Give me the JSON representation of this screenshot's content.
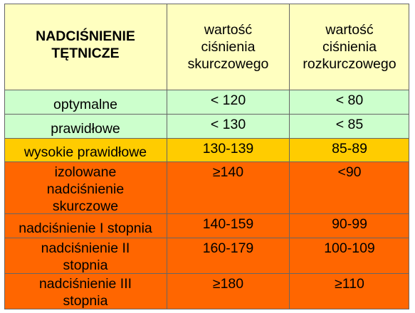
{
  "header": {
    "col1": "NADCIŚNIENIE\nTĘTNICZE",
    "col2": "wartość\nciśnienia\nskurczowego",
    "col3": "wartość\nciśnienia\nrozkurczowego"
  },
  "colors": {
    "header": "#ffffc0",
    "optimal": "#ccffcc",
    "high_normal": "#ffcc00",
    "hypertension": "#ff6600",
    "border": "#666666"
  },
  "rows": [
    {
      "category": "optymalne",
      "systolic": "< 120",
      "diastolic": "< 80"
    },
    {
      "category": "prawidłowe",
      "systolic": "< 130",
      "diastolic": "< 85"
    },
    {
      "category": "wysokie prawidłowe",
      "systolic": "130-139",
      "diastolic": "85-89"
    },
    {
      "category": "izolowane\nnadciśnienie\nskurczowe",
      "systolic": "≥140",
      "diastolic": "<90"
    },
    {
      "category": "nadciśnienie I stopnia",
      "systolic": "140-159",
      "diastolic": "90-99"
    },
    {
      "category": "nadciśnienie II\nstopnia",
      "systolic": "160-179",
      "diastolic": "100-109"
    },
    {
      "category": "nadciśnienie III\nstopnia",
      "systolic": "≥180",
      "diastolic": "≥110"
    }
  ]
}
